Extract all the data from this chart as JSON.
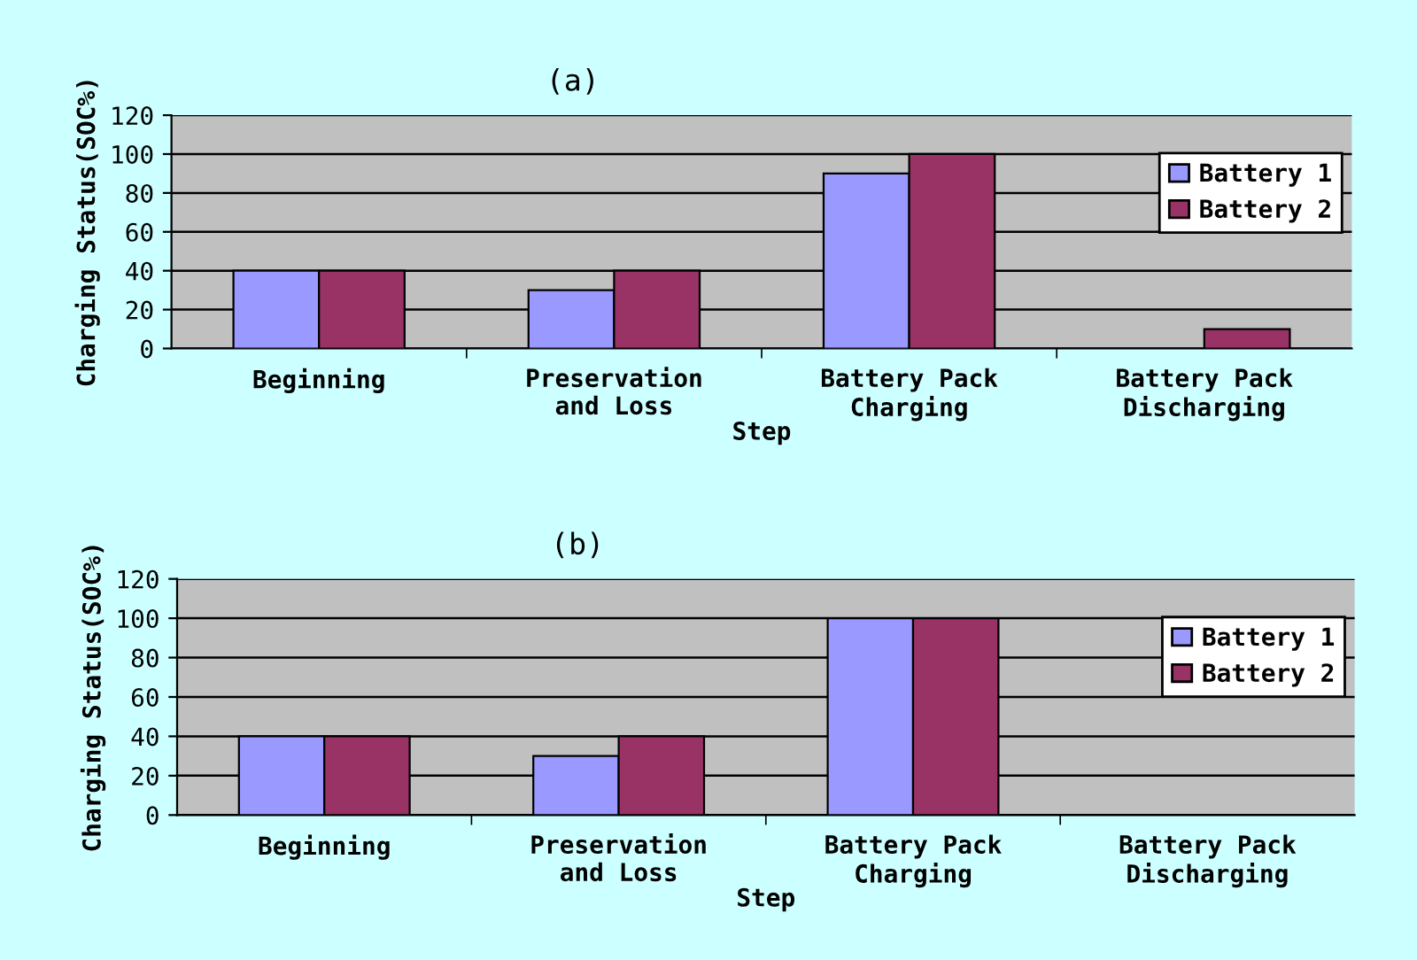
{
  "chart_data": [
    {
      "type": "bar",
      "title": "(a)",
      "xlabel": "Step",
      "ylabel": "Charging Status(SOC%)",
      "categories": [
        "Beginning",
        "Preservation\nand Loss",
        "Battery Pack\nCharging",
        "Battery Pack\nDischarging"
      ],
      "series": [
        {
          "name": "Battery 1",
          "color": "#9999ff",
          "values": [
            40,
            30,
            90,
            null
          ]
        },
        {
          "name": "Battery 2",
          "color": "#993366",
          "values": [
            40,
            40,
            100,
            10
          ]
        }
      ],
      "ylim": [
        0,
        120
      ],
      "yticks": [
        0,
        20,
        40,
        60,
        80,
        100,
        120
      ],
      "grid": "y",
      "legend": "top right"
    },
    {
      "type": "bar",
      "title": "(b)",
      "xlabel": "Step",
      "ylabel": "Charging Status(SOC%)",
      "categories": [
        "Beginning",
        "Preservation\nand Loss",
        "Battery Pack\nCharging",
        "Battery Pack\nDischarging"
      ],
      "series": [
        {
          "name": "Battery 1",
          "color": "#9999ff",
          "values": [
            40,
            30,
            100,
            null
          ]
        },
        {
          "name": "Battery 2",
          "color": "#993366",
          "values": [
            40,
            40,
            100,
            null
          ]
        }
      ],
      "ylim": [
        0,
        120
      ],
      "yticks": [
        0,
        20,
        40,
        60,
        80,
        100,
        120
      ],
      "grid": "y",
      "legend": "top right"
    }
  ]
}
